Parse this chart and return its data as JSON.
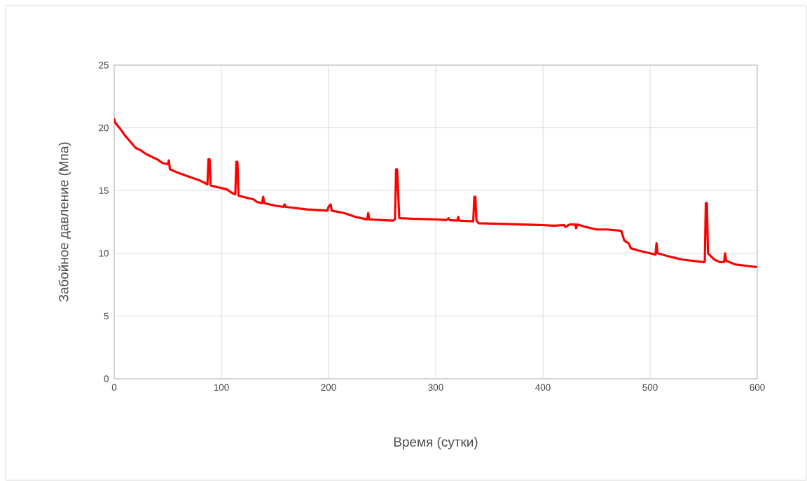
{
  "chart_data": {
    "type": "line",
    "xlabel": "Время (сутки)",
    "ylabel": "Забойное давление (Мпа)",
    "xlim": [
      0,
      600
    ],
    "xticks": [
      0,
      100,
      200,
      300,
      400,
      500,
      600
    ],
    "ylim": [
      0,
      25
    ],
    "yticks": [
      0,
      5,
      10,
      15,
      20,
      25
    ],
    "grid": true,
    "legend": false,
    "marker": "none",
    "line_style": "solid",
    "series": [
      {
        "color": "#ff0000",
        "x": [
          0,
          1,
          5,
          10,
          15,
          20,
          25,
          30,
          35,
          37,
          40,
          45,
          50,
          51,
          52,
          60,
          70,
          80,
          87,
          88,
          89,
          90,
          100,
          105,
          110,
          113,
          114,
          115,
          116,
          125,
          130,
          133,
          138,
          139,
          140,
          150,
          158,
          159,
          160,
          180,
          199,
          200,
          202,
          203,
          215,
          225,
          236,
          237,
          238,
          250,
          260,
          262,
          263,
          264,
          266,
          280,
          300,
          310,
          312,
          313,
          320,
          321,
          322,
          335,
          336,
          337,
          338,
          340,
          360,
          380,
          400,
          410,
          420,
          421,
          425,
          430,
          431,
          432,
          440,
          450,
          460,
          473,
          476,
          480,
          482,
          490,
          500,
          505,
          506,
          507,
          520,
          530,
          540,
          550,
          551,
          552,
          553,
          554,
          560,
          565,
          569,
          570,
          571,
          580,
          590,
          600
        ],
        "values": [
          20.7,
          20.4,
          20.0,
          19.4,
          18.9,
          18.4,
          18.2,
          17.9,
          17.7,
          17.6,
          17.5,
          17.2,
          17.1,
          17.4,
          16.7,
          16.4,
          16.1,
          15.8,
          15.5,
          17.5,
          17.5,
          15.4,
          15.2,
          15.1,
          14.8,
          14.7,
          17.3,
          17.3,
          14.6,
          14.4,
          14.3,
          14.1,
          14.0,
          14.5,
          14.0,
          13.8,
          13.7,
          13.9,
          13.7,
          13.5,
          13.4,
          13.7,
          13.9,
          13.4,
          13.2,
          12.9,
          12.7,
          13.2,
          12.7,
          12.65,
          12.6,
          12.7,
          16.7,
          16.7,
          12.8,
          12.75,
          12.7,
          12.65,
          12.8,
          12.65,
          12.6,
          12.9,
          12.6,
          12.55,
          14.5,
          14.5,
          12.6,
          12.4,
          12.35,
          12.3,
          12.25,
          12.2,
          12.25,
          12.1,
          12.3,
          12.3,
          12.0,
          12.3,
          12.1,
          11.9,
          11.9,
          11.8,
          11.0,
          10.8,
          10.4,
          10.2,
          10.0,
          9.9,
          10.8,
          10.0,
          9.7,
          9.5,
          9.4,
          9.3,
          9.3,
          14.0,
          14.0,
          10.0,
          9.5,
          9.3,
          9.3,
          10.0,
          9.4,
          9.1,
          9.0,
          8.9
        ]
      }
    ]
  }
}
